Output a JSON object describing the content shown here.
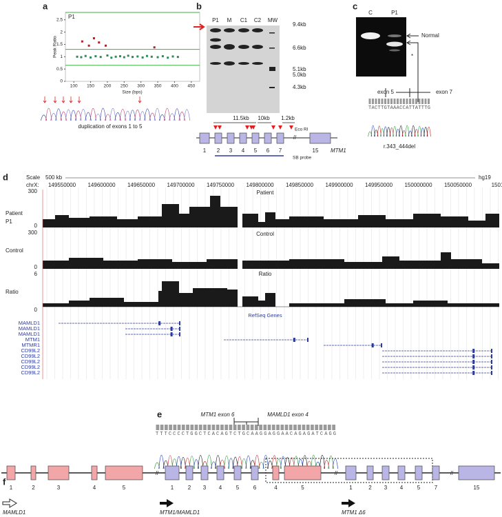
{
  "panels": {
    "a": {
      "label": "a",
      "sample": "P1",
      "y_label": "Peak Ratio",
      "x_label": "Size (bps)",
      "xlim": [
        75,
        475
      ],
      "ylim": [
        0,
        2.8
      ],
      "xticks": [
        100,
        150,
        200,
        250,
        300,
        350,
        400,
        450
      ],
      "yticks": [
        0,
        {
          "value": 0.5,
          "label": "0.5"
        },
        1,
        {
          "value": 1.5,
          "label": "1.5"
        },
        2,
        {
          "value": 2.5,
          "label": "2.5"
        }
      ],
      "thresholds": [
        0.65,
        1.3
      ],
      "dup_points": {
        "color": "#b22222",
        "x": [
          125,
          145,
          160,
          175,
          195,
          340
        ],
        "y": [
          1.62,
          1.45,
          1.75,
          1.58,
          1.45,
          1.38
        ]
      },
      "normal_points": {
        "color": "#2e8b57",
        "x": [
          110,
          122,
          135,
          150,
          165,
          180,
          200,
          212,
          225,
          238,
          250,
          262,
          275,
          290,
          305,
          318,
          332,
          350,
          365,
          380,
          395,
          410
        ],
        "y": [
          1.0,
          0.98,
          1.03,
          0.97,
          1.02,
          0.99,
          1.05,
          0.96,
          1.0,
          1.02,
          0.98,
          1.04,
          0.99,
          1.01,
          0.97,
          1.03,
          1.0,
          0.98,
          1.02,
          0.96,
          1.01,
          0.99
        ]
      },
      "caption": "duplication of exons 1 to 5"
    },
    "b": {
      "label": "b",
      "lanes": [
        "P1",
        "M",
        "C1",
        "C2",
        "MW"
      ],
      "sizes": [
        "9.4kb",
        "6.6kb",
        "5.1kb",
        "5.0kb",
        "4.3kb"
      ],
      "fragments": [
        "11.5kb",
        "10kb",
        "1.2kb"
      ],
      "enzyme": "Eco RI",
      "exons": [
        "1",
        "2",
        "3",
        "4",
        "5",
        "6",
        "7",
        "15"
      ],
      "gene": "MTM1",
      "probe": "SB probe"
    },
    "c": {
      "label": "c",
      "lanes": [
        "C",
        "P1"
      ],
      "band": "Normal",
      "star": "*",
      "exon_left": "exon 5",
      "exon_right": "exon 7",
      "sequence": "TACTTGTAAACCATTATTTG",
      "variant": "r.343_444del"
    },
    "d": {
      "label": "d",
      "scale": "Scale",
      "scale_bar": "500 kb",
      "assembly": "hg19",
      "chrom": "chrX:",
      "coords": [
        "149550000",
        "149600000",
        "149650000",
        "149700000",
        "149750000",
        "149800000",
        "149850000",
        "149900000",
        "149950000",
        "150000000",
        "150050000",
        "1501"
      ],
      "tracks": [
        {
          "left": [
            "Patient",
            "P1"
          ],
          "center": "Patient",
          "max": "300",
          "min": "0"
        },
        {
          "left": [
            "Control"
          ],
          "center": "Control",
          "max": "300",
          "min": "0"
        },
        {
          "left": [
            "Ratio"
          ],
          "center": "Ratio",
          "max": "6",
          "min": "0"
        }
      ],
      "genes_title": "RefSeq Genes",
      "genes": [
        "MAMLD1",
        "MAMLD1",
        "MAMLD1",
        "MTM1",
        "MTMR1",
        "CD99L2",
        "CD99L2",
        "CD99L2",
        "CD99L2",
        "CD99L2"
      ]
    },
    "e": {
      "label": "e",
      "left": "MTM1 exon 6",
      "right": "MAMLD1 exon 4",
      "sequence": "TTTCCCCTGGCTCACAGTCTGCAAGGAGGAACAGAGATCAGG"
    },
    "f": {
      "label": "f",
      "exons_mamld1": [
        "1",
        "2",
        "3",
        "4",
        "5"
      ],
      "exons_mtm1": [
        "1",
        "2",
        "3",
        "4",
        "5",
        "6"
      ],
      "exons_fusion_mamld1": [
        "4",
        "5"
      ],
      "exons_mtm1_d6": [
        "1",
        "2",
        "3",
        "4",
        "5"
      ],
      "exon_7": "7",
      "exon_15": "15",
      "names": [
        "MAMLD1",
        "MTM1/MAMLD1",
        "MTM1 Δ6"
      ]
    }
  }
}
